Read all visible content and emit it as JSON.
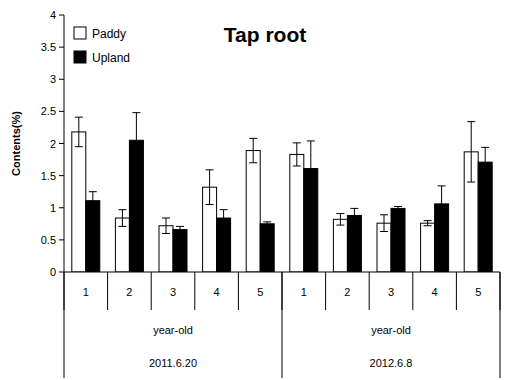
{
  "chart_data": {
    "type": "bar",
    "title": "Tap root",
    "y_label": "Contents(%)",
    "categories": [
      "1",
      "2",
      "3",
      "4",
      "5",
      "1",
      "2",
      "3",
      "4",
      "5"
    ],
    "group_labels": [
      "year-old",
      "year-old"
    ],
    "group_dates": [
      "2011.6.20",
      "2012.6.8"
    ],
    "series": [
      {
        "name": "Paddy",
        "color": "#ffffff",
        "values": [
          2.18,
          0.84,
          0.72,
          1.32,
          1.89,
          1.83,
          0.82,
          0.76,
          0.76,
          1.87
        ],
        "errors": [
          0.23,
          0.13,
          0.12,
          0.27,
          0.19,
          0.18,
          0.09,
          0.13,
          0.04,
          0.47
        ]
      },
      {
        "name": "Upland",
        "color": "#000000",
        "values": [
          1.11,
          2.05,
          0.66,
          0.84,
          0.75,
          1.61,
          0.88,
          0.99,
          1.06,
          1.71
        ],
        "errors": [
          0.14,
          0.43,
          0.05,
          0.13,
          0.03,
          0.43,
          0.11,
          0.03,
          0.28,
          0.23
        ]
      }
    ],
    "ylim": [
      0,
      4
    ],
    "yticks": [
      0,
      0.5,
      1,
      1.5,
      2,
      2.5,
      3,
      3.5,
      4
    ],
    "legend": "top-left",
    "grid": false
  }
}
